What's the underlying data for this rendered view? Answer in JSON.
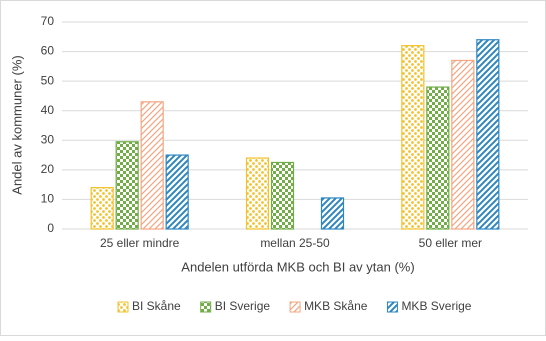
{
  "chart_data": {
    "type": "bar",
    "categories": [
      "25 eller mindre",
      "mellan 25-50",
      "50 eller mer"
    ],
    "series": [
      {
        "name": "BI Skåne",
        "color": "#f2c230",
        "values": [
          14,
          24,
          62
        ]
      },
      {
        "name": "BI Sverige",
        "color": "#70ad47",
        "values": [
          29.5,
          22.5,
          48
        ]
      },
      {
        "name": "MKB Skåne",
        "color": "#f4a582",
        "values": [
          43,
          0,
          57
        ]
      },
      {
        "name": "MKB Sverige",
        "color": "#2e86c1",
        "values": [
          25,
          10.5,
          64
        ]
      }
    ],
    "x_label": "Andelen utförda MKB och BI av ytan (%)",
    "y_label": "Andel av kommuner (%)",
    "ylim": [
      0,
      70
    ],
    "yticks": [
      0,
      10,
      20,
      30,
      40,
      50,
      60,
      70
    ],
    "grid": true,
    "legend": "bottom"
  }
}
